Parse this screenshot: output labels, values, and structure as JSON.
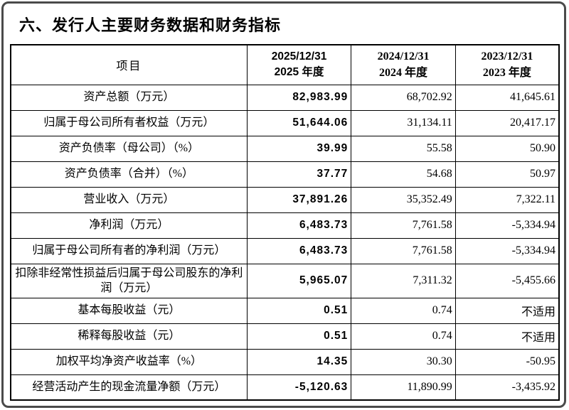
{
  "page": {
    "title": "六、发行人主要财务数据和财务指标"
  },
  "table": {
    "header": {
      "item_label": "项目",
      "columns": [
        {
          "date": "2025/12/31",
          "period": "2025 年度"
        },
        {
          "date": "2024/12/31",
          "period": "2024 年度"
        },
        {
          "date": "2023/12/31",
          "period": "2023 年度"
        }
      ]
    },
    "rows": [
      {
        "label": "资产总额（万元）",
        "v2025": "82,983.99",
        "v2024": "68,702.92",
        "v2023": "41,645.61"
      },
      {
        "label": "归属于母公司所有者权益（万元）",
        "v2025": "51,644.06",
        "v2024": "31,134.11",
        "v2023": "20,417.17"
      },
      {
        "label": "资产负债率（母公司）（%）",
        "v2025": "39.99",
        "v2024": "55.58",
        "v2023": "50.90"
      },
      {
        "label": "资产负债率（合并）（%）",
        "v2025": "37.77",
        "v2024": "54.68",
        "v2023": "50.97"
      },
      {
        "label": "营业收入（万元）",
        "v2025": "37,891.26",
        "v2024": "35,352.49",
        "v2023": "7,322.11"
      },
      {
        "label": "净利润（万元）",
        "v2025": "6,483.73",
        "v2024": "7,761.58",
        "v2023": "-5,334.94"
      },
      {
        "label": "归属于母公司所有者的净利润（万元）",
        "v2025": "6,483.73",
        "v2024": "7,761.58",
        "v2023": "-5,334.94"
      },
      {
        "label": "扣除非经常性损益后归属于母公司股东的净利润（万元）",
        "v2025": "5,965.07",
        "v2024": "7,311.32",
        "v2023": "-5,455.66"
      },
      {
        "label": "基本每股收益（元）",
        "v2025": "0.51",
        "v2024": "0.74",
        "v2023": "不适用"
      },
      {
        "label": "稀释每股收益（元）",
        "v2025": "0.51",
        "v2024": "0.74",
        "v2023": "不适用"
      },
      {
        "label": "加权平均净资产收益率（%）",
        "v2025": "14.35",
        "v2024": "30.30",
        "v2023": "-50.95"
      },
      {
        "label": "经营活动产生的现金流量净额（万元）",
        "v2025": "-5,120.63",
        "v2024": "11,890.99",
        "v2023": "-3,435.92"
      }
    ]
  }
}
